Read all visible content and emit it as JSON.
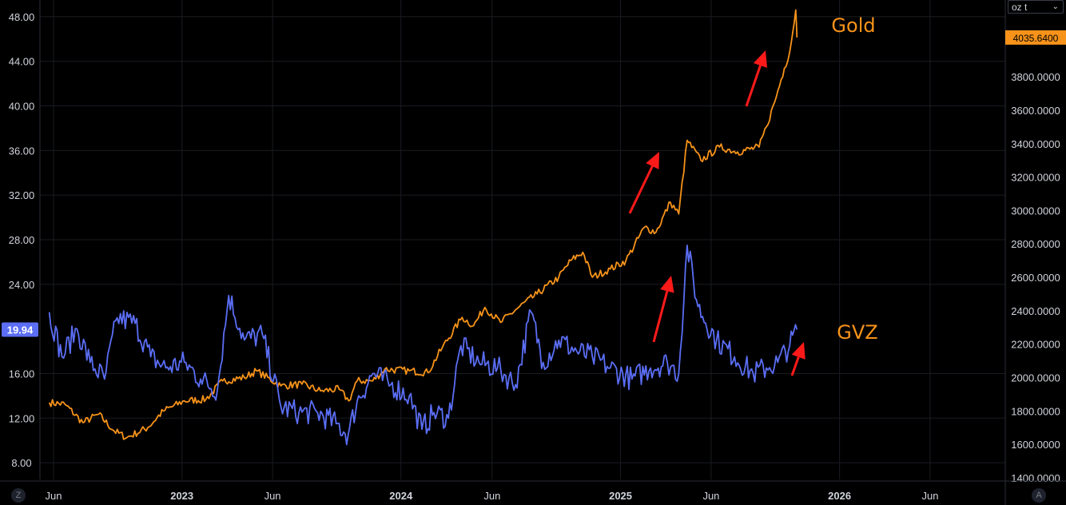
{
  "unit_selector": {
    "value": "oz t"
  },
  "buttons": {
    "left_corner": "Z",
    "right_corner": "A"
  },
  "colors": {
    "gold": "#f7931a",
    "gvz": "#5b6ef5",
    "arrow": "#ff1a1a",
    "grid": "#1a1c22",
    "background": "#000000"
  },
  "chart_data": {
    "type": "line",
    "annotations": [
      {
        "text": "Gold",
        "color": "#f7931a"
      },
      {
        "text": "GVZ",
        "color": "#f7931a"
      }
    ],
    "x_tick_labels": [
      "Jun",
      "2023",
      "Jun",
      "2024",
      "Jun",
      "2025",
      "Jun",
      "2026",
      "Jun"
    ],
    "left_axis": {
      "tick_labels": [
        "48.00",
        "44.00",
        "40.00",
        "36.00",
        "32.00",
        "28.00",
        "24.00",
        "16.00",
        "12.00",
        "8.00"
      ],
      "range": [
        6.5,
        49.5
      ],
      "last_value_label": "19.94"
    },
    "right_axis": {
      "tick_labels": [
        "3800.0000",
        "3600.0000",
        "3400.0000",
        "3200.0000",
        "3000.0000",
        "2800.0000",
        "2600.0000",
        "2400.0000",
        "2200.0000",
        "2000.0000",
        "1800.0000",
        "1600.0000",
        "1400.0000"
      ],
      "range": [
        1390,
        4260
      ],
      "last_value_label": "4035.6400"
    },
    "series": [
      {
        "name": "GVZ",
        "axis": "left",
        "x": [
          "2022-05-25",
          "2022-06-15",
          "2022-07-10",
          "2022-08-01",
          "2022-08-25",
          "2022-09-15",
          "2022-10-15",
          "2022-11-10",
          "2022-12-05",
          "2023-01-05",
          "2023-02-01",
          "2023-03-01",
          "2023-03-20",
          "2023-04-15",
          "2023-05-15",
          "2023-06-15",
          "2023-07-15",
          "2023-08-15",
          "2023-09-15",
          "2023-10-05",
          "2023-10-20",
          "2023-11-15",
          "2023-12-15",
          "2024-01-15",
          "2024-02-05",
          "2024-02-25",
          "2024-03-20",
          "2024-04-10",
          "2024-05-10",
          "2024-06-10",
          "2024-07-10",
          "2024-08-05",
          "2024-08-25",
          "2024-09-20",
          "2024-10-20",
          "2024-11-15",
          "2024-12-15",
          "2025-01-20",
          "2025-02-20",
          "2025-03-20",
          "2025-04-08",
          "2025-04-22",
          "2025-05-10",
          "2025-06-10",
          "2025-07-10",
          "2025-08-10",
          "2025-09-01",
          "2025-09-20",
          "2025-10-10",
          "2025-10-22"
        ],
        "values": [
          21.5,
          17.5,
          20.0,
          17.0,
          15.5,
          21.0,
          20.5,
          17.5,
          16.5,
          17.0,
          15.5,
          14.5,
          23.0,
          19.0,
          19.5,
          13.0,
          12.5,
          12.5,
          11.5,
          10.5,
          13.5,
          16.0,
          15.0,
          14.0,
          11.0,
          12.5,
          12.0,
          18.5,
          17.0,
          16.5,
          15.0,
          21.5,
          17.0,
          19.0,
          18.0,
          17.5,
          16.5,
          15.5,
          16.5,
          17.0,
          16.0,
          27.5,
          22.0,
          19.0,
          17.5,
          16.0,
          16.5,
          17.0,
          18.5,
          19.94
        ]
      },
      {
        "name": "Gold",
        "axis": "right",
        "x": [
          "2022-05-25",
          "2022-06-20",
          "2022-07-20",
          "2022-08-15",
          "2022-09-10",
          "2022-10-01",
          "2022-11-05",
          "2022-12-01",
          "2023-01-05",
          "2023-02-10",
          "2023-03-10",
          "2023-04-15",
          "2023-05-05",
          "2023-06-15",
          "2023-07-20",
          "2023-08-20",
          "2023-09-20",
          "2023-10-06",
          "2023-10-20",
          "2023-11-15",
          "2023-12-05",
          "2024-01-15",
          "2024-02-15",
          "2024-03-10",
          "2024-04-12",
          "2024-05-01",
          "2024-05-20",
          "2024-06-15",
          "2024-07-15",
          "2024-08-15",
          "2024-09-20",
          "2024-10-10",
          "2024-10-30",
          "2024-11-15",
          "2024-12-15",
          "2025-01-10",
          "2025-02-10",
          "2025-03-01",
          "2025-03-25",
          "2025-04-08",
          "2025-04-22",
          "2025-05-15",
          "2025-06-15",
          "2025-07-15",
          "2025-08-20",
          "2025-09-01",
          "2025-09-15",
          "2025-10-01",
          "2025-10-10",
          "2025-10-20",
          "2025-10-22"
        ],
        "values": [
          1850,
          1840,
          1730,
          1780,
          1680,
          1640,
          1700,
          1800,
          1860,
          1870,
          1980,
          2000,
          2040,
          1950,
          1960,
          1920,
          1930,
          1860,
          1980,
          1980,
          2050,
          2040,
          2030,
          2180,
          2360,
          2310,
          2420,
          2330,
          2420,
          2500,
          2600,
          2700,
          2750,
          2600,
          2650,
          2700,
          2900,
          2870,
          3050,
          2980,
          3420,
          3300,
          3380,
          3350,
          3380,
          3500,
          3650,
          3850,
          3950,
          4200,
          4035.64
        ]
      }
    ]
  }
}
